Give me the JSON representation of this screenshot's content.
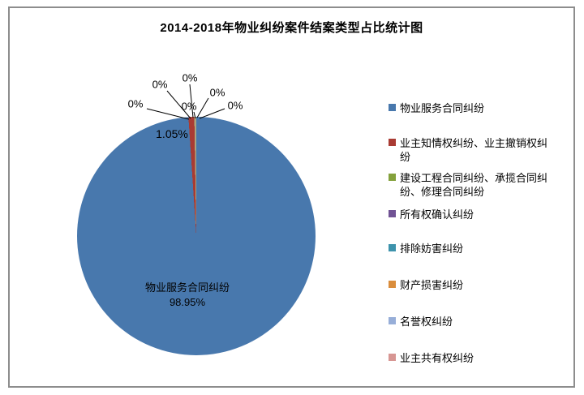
{
  "chart_data": {
    "type": "pie",
    "title": "2014-2018年物业纠纷案件结案类型占比统计图",
    "legend_position": "right",
    "data_labels": "percent",
    "background_color": "#ffffff",
    "border_color": "#8d8d8d",
    "zero_slice_line_color": "#aba57d",
    "series": [
      {
        "label": "物业服务合同纠纷",
        "value": 98.95,
        "display": "98.95%",
        "color": "#4878ad"
      },
      {
        "label": "业主知情权纠纷、业主撤销权纠纷",
        "value": 1.05,
        "display": "1.05%",
        "color": "#a93b33"
      },
      {
        "label": "建设工程合同纠纷、承揽合同纠纷、修理合同纠纷",
        "value": 0,
        "display": "0%",
        "color": "#84a13c"
      },
      {
        "label": "所有权确认纠纷",
        "value": 0,
        "display": "0%",
        "color": "#705294"
      },
      {
        "label": "排除妨害纠纷",
        "value": 0,
        "display": "0%",
        "color": "#3d93ac"
      },
      {
        "label": "财产损害纠纷",
        "value": 0,
        "display": "0%",
        "color": "#da8d3c"
      },
      {
        "label": "名誉权纠纷",
        "value": 0,
        "display": "0%",
        "color": "#97aed8"
      },
      {
        "label": "业主共有权纠纷",
        "value": 0,
        "display": "0%",
        "color": "#d79693"
      }
    ]
  }
}
